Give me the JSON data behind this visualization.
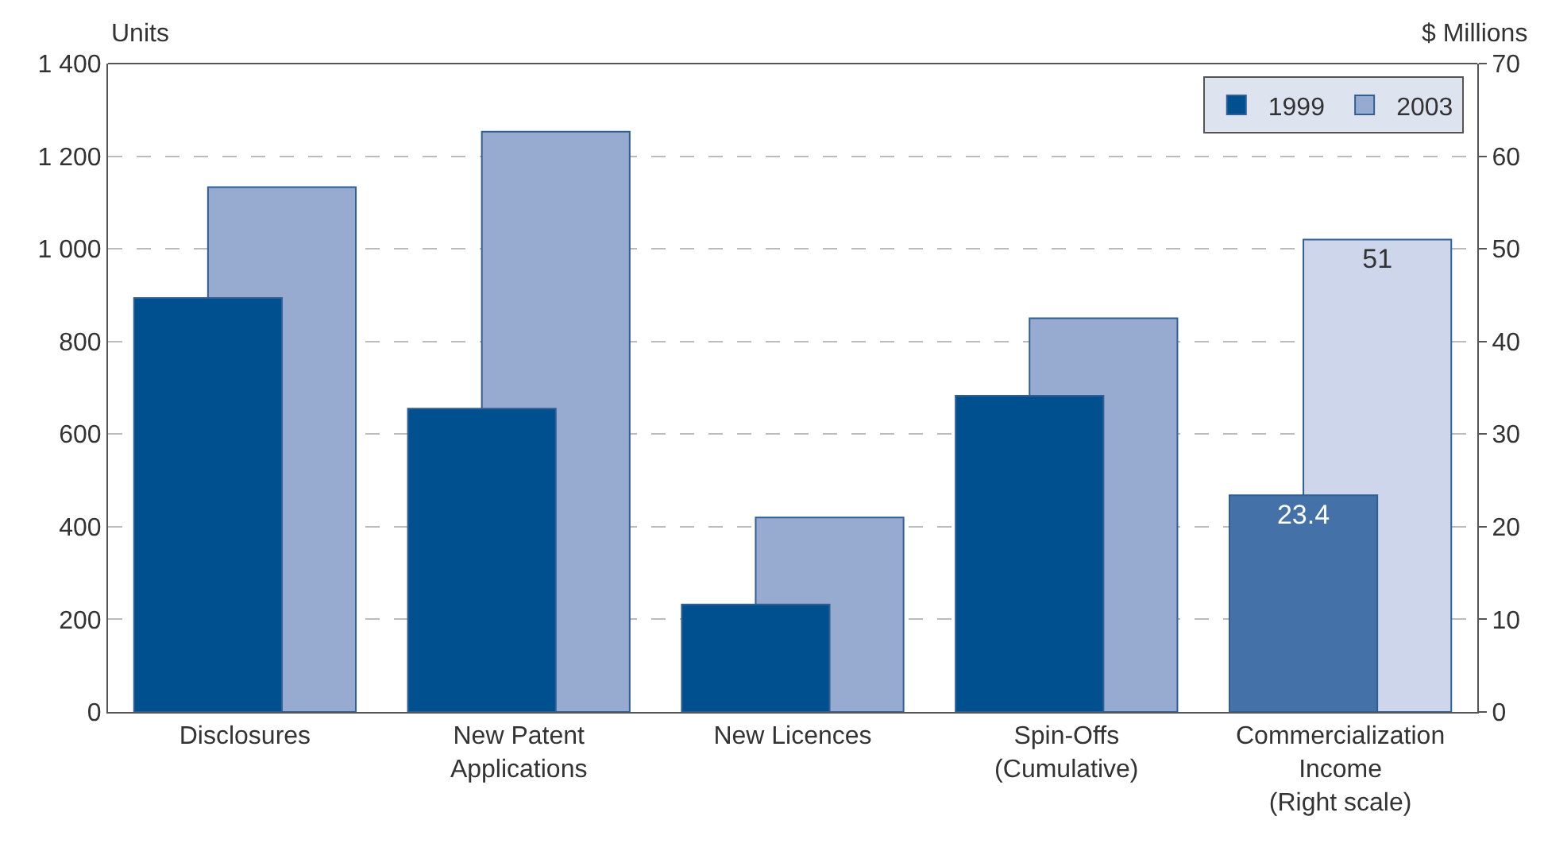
{
  "chart_data": {
    "type": "bar",
    "ylabel": "Units",
    "y2label": "$ Millions",
    "categories": [
      "Disclosures",
      "New Patent\nApplications",
      "New Licences",
      "Spin-Offs\n(Cumulative)",
      "Commercialization\nIncome\n(Right scale)"
    ],
    "series": [
      {
        "name": "1999",
        "color": "#00508f",
        "values": [
          894,
          655,
          232,
          683,
          null
        ]
      },
      {
        "name": "2003",
        "color": "#97abd1",
        "values": [
          1133,
          1253,
          420,
          850,
          null
        ]
      },
      {
        "color": "#4472a8",
        "axis": "y2",
        "values": [
          null,
          null,
          null,
          null,
          23.4
        ],
        "value_labels": [
          null,
          null,
          null,
          null,
          "23.4"
        ]
      },
      {
        "color": "#cdd6ea",
        "axis": "y2",
        "values": [
          null,
          null,
          null,
          null,
          51
        ],
        "value_labels": [
          null,
          null,
          null,
          null,
          "51"
        ]
      }
    ],
    "ylim": [
      0,
      1400
    ],
    "yticks": [
      0,
      200,
      400,
      600,
      800,
      {
        "value": 1000,
        "label": "1 000"
      },
      {
        "value": 1200,
        "label": "1 200"
      },
      {
        "value": 1400,
        "label": "1 400"
      }
    ],
    "y2lim": [
      0,
      70
    ],
    "y2ticks": [
      0,
      10,
      20,
      30,
      40,
      50,
      60,
      70
    ],
    "grid": "y",
    "legend": "top right"
  }
}
